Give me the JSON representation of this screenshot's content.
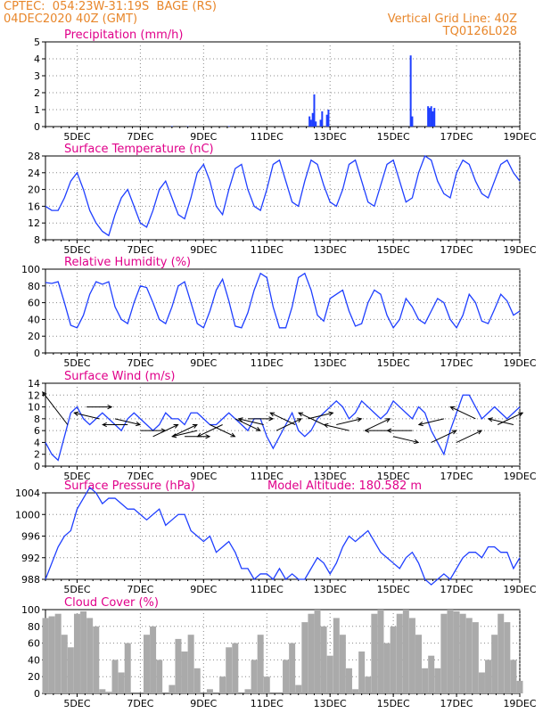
{
  "header": {
    "line1_left": "CPTEC:  054:23W-31:19S  BAGE (RS)",
    "line2_left": "04DEC2020 40Z (GMT)",
    "line1_right": "Vertical Grid Line: 40Z",
    "line2_right": "TQ0126L028",
    "accent_color": "#e8862a"
  },
  "colors": {
    "title": "#e0008a",
    "series": "#1f3fff",
    "bars": "#aaaaaa",
    "arrows": "#000000"
  },
  "x_axis": {
    "range": [
      "2020-12-04T00",
      "2020-12-19T00"
    ],
    "tick_labels": [
      "5DEC",
      "7DEC",
      "9DEC",
      "11DEC",
      "13DEC",
      "15DEC",
      "17DEC",
      "19DEC"
    ],
    "tick_day_offsets": [
      1,
      3,
      5,
      7,
      9,
      11,
      13,
      15
    ]
  },
  "chart_data": [
    {
      "type": "bar",
      "title": "Precipitation (mm/h)",
      "ylim": [
        0,
        5
      ],
      "yticks": [
        "0",
        "1",
        "2",
        "3",
        "4",
        "5"
      ],
      "grid": true,
      "points": [
        [
          8.0,
          0.03
        ],
        [
          8.5,
          0.02
        ],
        [
          9.8,
          0.03
        ],
        [
          12.35,
          0.6
        ],
        [
          12.4,
          0.4
        ],
        [
          12.45,
          0.8
        ],
        [
          12.5,
          1.9
        ],
        [
          12.55,
          0.3
        ],
        [
          12.7,
          0.4
        ],
        [
          12.75,
          0.9
        ],
        [
          12.9,
          0.7
        ],
        [
          12.95,
          1.0
        ],
        [
          15.55,
          4.2
        ],
        [
          15.6,
          0.6
        ],
        [
          16.1,
          1.2
        ],
        [
          16.15,
          1.1
        ],
        [
          16.2,
          1.2
        ],
        [
          16.25,
          0.9
        ],
        [
          16.3,
          1.1
        ]
      ]
    },
    {
      "type": "line",
      "title": "Surface Temperature (nC)",
      "ylim": [
        8,
        28
      ],
      "yticks": [
        "8",
        "12",
        "16",
        "20",
        "24",
        "28"
      ],
      "grid": true,
      "x": [
        4.0,
        4.2,
        4.4,
        4.6,
        4.8,
        5.0,
        5.2,
        5.4,
        5.6,
        5.8,
        6.0,
        6.2,
        6.4,
        6.6,
        6.8,
        7.0,
        7.2,
        7.4,
        7.6,
        7.8,
        8.0,
        8.2,
        8.4,
        8.6,
        8.8,
        9.0,
        9.2,
        9.4,
        9.6,
        9.8,
        10.0,
        10.2,
        10.4,
        10.6,
        10.8,
        11.0,
        11.2,
        11.4,
        11.6,
        11.8,
        12.0,
        12.2,
        12.4,
        12.6,
        12.8,
        13.0,
        13.2,
        13.4,
        13.6,
        13.8,
        14.0,
        14.2,
        14.4,
        14.6,
        14.8,
        15.0,
        15.2,
        15.4,
        15.6,
        15.8,
        16.0,
        16.2,
        16.4,
        16.6,
        16.8,
        17.0,
        17.2,
        17.4,
        17.6,
        17.8,
        18.0,
        18.2,
        18.4,
        18.6,
        18.8,
        19.0
      ],
      "y": [
        16,
        15,
        15,
        18,
        22,
        24,
        20,
        15,
        12,
        10,
        9,
        14,
        18,
        20,
        16,
        12,
        11,
        15,
        20,
        22,
        18,
        14,
        13,
        18,
        24,
        26,
        22,
        16,
        14,
        20,
        25,
        26,
        20,
        16,
        15,
        20,
        26,
        27,
        22,
        17,
        16,
        22,
        27,
        26,
        21,
        17,
        16,
        20,
        26,
        27,
        22,
        17,
        16,
        21,
        26,
        27,
        22,
        17,
        18,
        24,
        28,
        27,
        22,
        19,
        18,
        24,
        27,
        26,
        22,
        19,
        18,
        22,
        26,
        27,
        24,
        22
      ]
    },
    {
      "type": "line",
      "title": "Relative Humidity (%)",
      "ylim": [
        0,
        100
      ],
      "yticks": [
        "0",
        "20",
        "40",
        "60",
        "80",
        "100"
      ],
      "grid": true,
      "x": [
        4.0,
        4.2,
        4.4,
        4.6,
        4.8,
        5.0,
        5.2,
        5.4,
        5.6,
        5.8,
        6.0,
        6.2,
        6.4,
        6.6,
        6.8,
        7.0,
        7.2,
        7.4,
        7.6,
        7.8,
        8.0,
        8.2,
        8.4,
        8.6,
        8.8,
        9.0,
        9.2,
        9.4,
        9.6,
        9.8,
        10.0,
        10.2,
        10.4,
        10.6,
        10.8,
        11.0,
        11.2,
        11.4,
        11.6,
        11.8,
        12.0,
        12.2,
        12.4,
        12.6,
        12.8,
        13.0,
        13.2,
        13.4,
        13.6,
        13.8,
        14.0,
        14.2,
        14.4,
        14.6,
        14.8,
        15.0,
        15.2,
        15.4,
        15.6,
        15.8,
        16.0,
        16.2,
        16.4,
        16.6,
        16.8,
        17.0,
        17.2,
        17.4,
        17.6,
        17.8,
        18.0,
        18.2,
        18.4,
        18.6,
        18.8,
        19.0
      ],
      "y": [
        84,
        83,
        85,
        60,
        33,
        30,
        45,
        70,
        85,
        82,
        85,
        55,
        40,
        35,
        60,
        80,
        78,
        60,
        40,
        35,
        55,
        80,
        85,
        60,
        35,
        30,
        50,
        75,
        88,
        62,
        32,
        30,
        48,
        75,
        95,
        90,
        55,
        30,
        30,
        55,
        90,
        95,
        75,
        45,
        38,
        65,
        70,
        75,
        50,
        32,
        35,
        60,
        75,
        70,
        45,
        30,
        40,
        65,
        55,
        40,
        35,
        50,
        65,
        60,
        40,
        30,
        45,
        70,
        60,
        38,
        35,
        52,
        70,
        62,
        45,
        50
      ]
    },
    {
      "type": "line",
      "title": "Surface Wind (m/s)",
      "ylim": [
        0,
        14
      ],
      "yticks": [
        "0",
        "2",
        "4",
        "6",
        "8",
        "10",
        "12",
        "14"
      ],
      "grid": true,
      "x": [
        4.0,
        4.2,
        4.4,
        4.6,
        4.8,
        5.0,
        5.2,
        5.4,
        5.6,
        5.8,
        6.0,
        6.2,
        6.4,
        6.6,
        6.8,
        7.0,
        7.2,
        7.4,
        7.6,
        7.8,
        8.0,
        8.2,
        8.4,
        8.6,
        8.8,
        9.0,
        9.2,
        9.4,
        9.6,
        9.8,
        10.0,
        10.2,
        10.4,
        10.6,
        10.8,
        11.0,
        11.2,
        11.4,
        11.6,
        11.8,
        12.0,
        12.2,
        12.4,
        12.6,
        12.8,
        13.0,
        13.2,
        13.4,
        13.6,
        13.8,
        14.0,
        14.2,
        14.4,
        14.6,
        14.8,
        15.0,
        15.2,
        15.4,
        15.6,
        15.8,
        16.0,
        16.2,
        16.4,
        16.6,
        16.8,
        17.0,
        17.2,
        17.4,
        17.6,
        17.8,
        18.0,
        18.2,
        18.4,
        18.6,
        18.8,
        19.0
      ],
      "y": [
        4,
        2,
        1,
        5,
        9,
        10,
        8,
        7,
        8,
        9,
        8,
        7,
        6,
        8,
        9,
        8,
        7,
        6,
        7,
        9,
        8,
        8,
        7,
        9,
        9,
        8,
        7,
        7,
        8,
        9,
        8,
        7,
        6,
        8,
        8,
        5,
        3,
        5,
        7,
        9,
        6,
        5,
        6,
        8,
        9,
        10,
        11,
        10,
        8,
        9,
        11,
        10,
        9,
        8,
        9,
        11,
        10,
        9,
        8,
        10,
        9,
        6,
        4,
        2,
        6,
        9,
        12,
        12,
        10,
        8,
        9,
        10,
        9,
        8,
        9,
        10
      ],
      "arrows": [
        [
          4.7,
          7,
          12.5
        ],
        [
          5.3,
          10,
          10
        ],
        [
          5.7,
          8,
          9
        ],
        [
          6.2,
          8,
          7
        ],
        [
          6.6,
          7,
          7
        ],
        [
          7.0,
          6,
          6
        ],
        [
          7.4,
          5,
          7
        ],
        [
          8.0,
          5,
          7
        ],
        [
          8.4,
          5,
          5
        ],
        [
          8.8,
          6,
          5
        ],
        [
          9.2,
          7,
          5
        ],
        [
          9.6,
          7,
          5
        ],
        [
          10.0,
          8,
          6
        ],
        [
          10.4,
          8,
          8
        ],
        [
          10.9,
          7,
          8
        ],
        [
          11.3,
          6,
          8
        ],
        [
          11.9,
          7,
          9
        ],
        [
          12.3,
          8,
          9
        ],
        [
          12.8,
          7,
          9
        ],
        [
          13.2,
          7,
          8
        ],
        [
          13.6,
          6,
          7
        ],
        [
          14.1,
          6,
          8
        ],
        [
          14.9,
          6,
          6
        ],
        [
          15.0,
          5,
          4
        ],
        [
          15.6,
          6,
          6
        ],
        [
          16.2,
          4,
          6
        ],
        [
          16.6,
          8,
          7
        ],
        [
          17.0,
          4,
          6
        ],
        [
          17.6,
          8,
          10
        ],
        [
          18.3,
          7,
          9
        ],
        [
          18.8,
          7,
          8
        ]
      ]
    },
    {
      "type": "line",
      "title": "Surface Pressure (hPa)",
      "annotation": "Model Altitude: 180.582 m",
      "ylim": [
        988,
        1004
      ],
      "yticks": [
        "988",
        "992",
        "996",
        "1000",
        "1004"
      ],
      "grid": true,
      "x": [
        4.0,
        4.2,
        4.4,
        4.6,
        4.8,
        5.0,
        5.2,
        5.4,
        5.6,
        5.8,
        6.0,
        6.2,
        6.4,
        6.6,
        6.8,
        7.0,
        7.2,
        7.4,
        7.6,
        7.8,
        8.0,
        8.2,
        8.4,
        8.6,
        8.8,
        9.0,
        9.2,
        9.4,
        9.6,
        9.8,
        10.0,
        10.2,
        10.4,
        10.6,
        10.8,
        11.0,
        11.2,
        11.4,
        11.6,
        11.8,
        12.0,
        12.2,
        12.4,
        12.6,
        12.8,
        13.0,
        13.2,
        13.4,
        13.6,
        13.8,
        14.0,
        14.2,
        14.4,
        14.6,
        14.8,
        15.0,
        15.2,
        15.4,
        15.6,
        15.8,
        16.0,
        16.2,
        16.4,
        16.6,
        16.8,
        17.0,
        17.2,
        17.4,
        17.6,
        17.8,
        18.0,
        18.2,
        18.4,
        18.6,
        18.8,
        19.0
      ],
      "y": [
        988,
        991,
        994,
        996,
        997,
        1001,
        1003,
        1005,
        1004,
        1002,
        1003,
        1003,
        1002,
        1001,
        1001,
        1000,
        999,
        1000,
        1001,
        998,
        999,
        1000,
        1000,
        997,
        996,
        995,
        996,
        993,
        994,
        995,
        993,
        990,
        990,
        988,
        989,
        989,
        988,
        990,
        988,
        989,
        988,
        988,
        990,
        992,
        991,
        989,
        991,
        994,
        996,
        995,
        996,
        997,
        995,
        993,
        992,
        991,
        990,
        992,
        993,
        991,
        988,
        987,
        988,
        989,
        988,
        990,
        992,
        993,
        993,
        992,
        994,
        994,
        993,
        993,
        990,
        992
      ]
    },
    {
      "type": "bar",
      "title": "Cloud Cover (%)",
      "ylim": [
        0,
        100
      ],
      "yticks": [
        "0",
        "20",
        "40",
        "60",
        "80",
        "100"
      ],
      "grid": true,
      "x": [
        4.0,
        4.2,
        4.4,
        4.6,
        4.8,
        5.0,
        5.2,
        5.4,
        5.6,
        5.8,
        6.0,
        6.2,
        6.4,
        6.6,
        6.8,
        7.0,
        7.2,
        7.4,
        7.6,
        7.8,
        8.0,
        8.2,
        8.4,
        8.6,
        8.8,
        9.0,
        9.2,
        9.4,
        9.6,
        9.8,
        10.0,
        10.2,
        10.4,
        10.6,
        10.8,
        11.0,
        11.2,
        11.4,
        11.6,
        11.8,
        12.0,
        12.2,
        12.4,
        12.6,
        12.8,
        13.0,
        13.2,
        13.4,
        13.6,
        13.8,
        14.0,
        14.2,
        14.4,
        14.6,
        14.8,
        15.0,
        15.2,
        15.4,
        15.6,
        15.8,
        16.0,
        16.2,
        16.4,
        16.6,
        16.8,
        17.0,
        17.2,
        17.4,
        17.6,
        17.8,
        18.0,
        18.2,
        18.4,
        18.6,
        18.8,
        19.0
      ],
      "y": [
        90,
        92,
        95,
        70,
        55,
        95,
        98,
        90,
        80,
        5,
        2,
        40,
        25,
        60,
        0,
        0,
        70,
        80,
        40,
        0,
        10,
        65,
        50,
        70,
        30,
        0,
        5,
        0,
        20,
        55,
        60,
        0,
        5,
        40,
        70,
        20,
        0,
        0,
        40,
        60,
        10,
        85,
        95,
        100,
        80,
        45,
        90,
        70,
        30,
        5,
        50,
        20,
        95,
        100,
        60,
        80,
        95,
        100,
        90,
        70,
        30,
        45,
        30,
        95,
        100,
        98,
        95,
        90,
        85,
        25,
        40,
        70,
        95,
        85,
        40,
        15
      ]
    }
  ]
}
